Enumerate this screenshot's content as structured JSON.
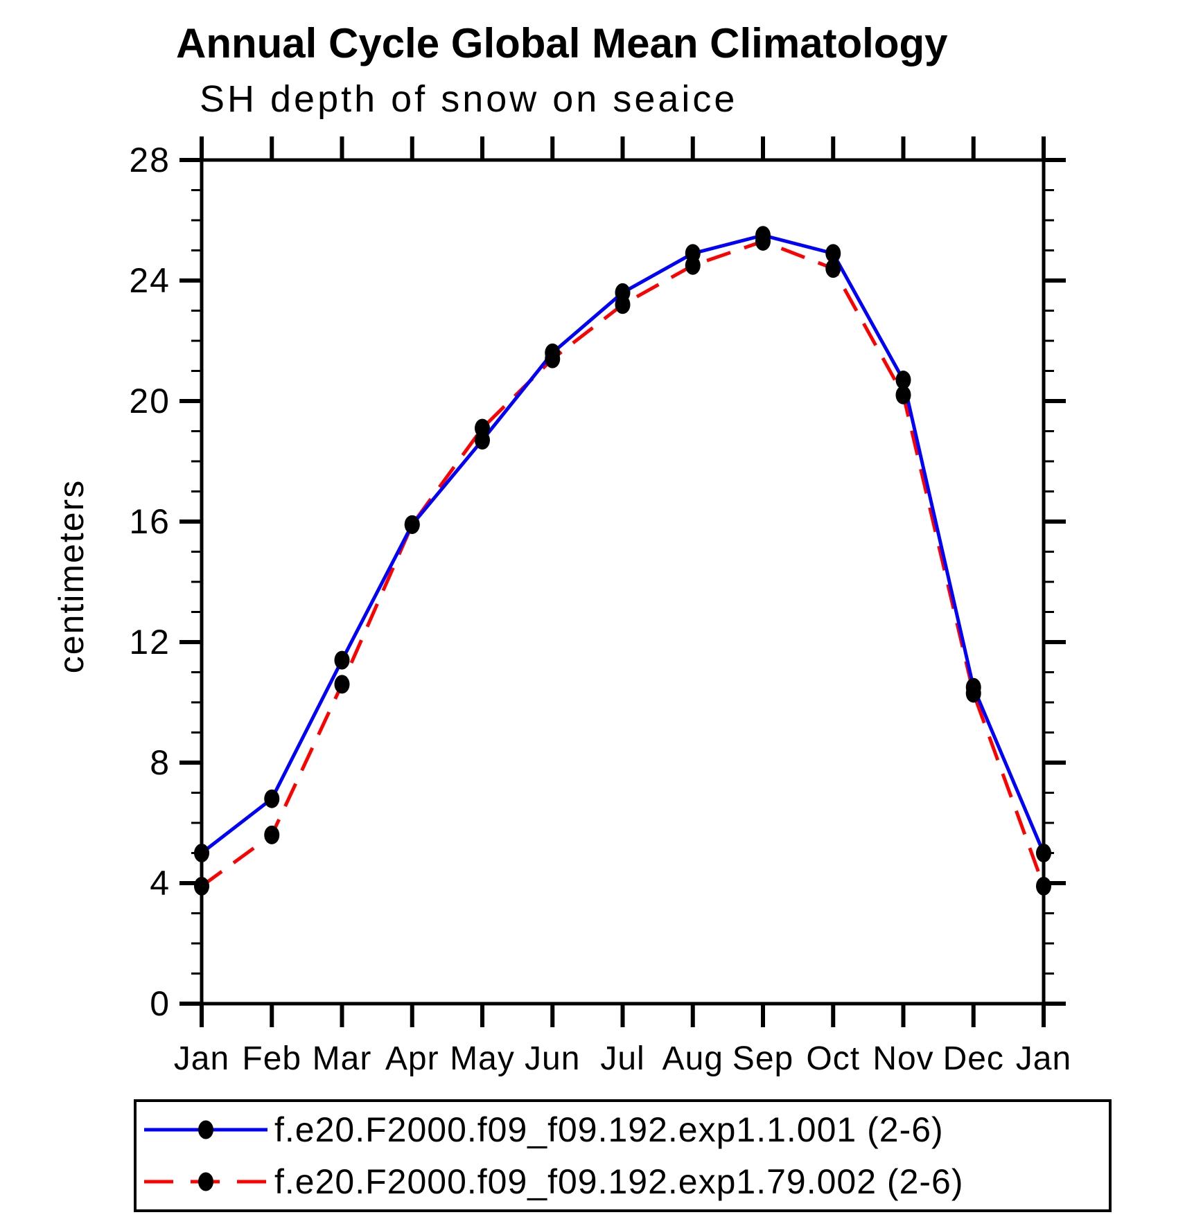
{
  "title": "Annual Cycle Global Mean Climatology",
  "subtitle": "SH depth of snow on seaice",
  "chart_data": {
    "type": "line",
    "title": "Annual Cycle Global Mean Climatology",
    "subtitle": "SH depth of snow on seaice",
    "xlabel": "",
    "ylabel": "centimeters",
    "categories": [
      "Jan",
      "Feb",
      "Mar",
      "Apr",
      "May",
      "Jun",
      "Jul",
      "Aug",
      "Sep",
      "Oct",
      "Nov",
      "Dec",
      "Jan"
    ],
    "series": [
      {
        "name": "f.e20.F2000.f09_f09.192.exp1.1.001 (2-6)",
        "color": "#0000ff",
        "line_style": "solid",
        "marker": "filled-black-dot",
        "values": [
          5.0,
          6.8,
          11.4,
          15.9,
          18.7,
          21.6,
          23.6,
          24.9,
          25.5,
          24.9,
          20.7,
          10.5,
          5.0
        ]
      },
      {
        "name": "f.e20.F2000.f09_f09.192.exp1.79.002 (2-6)",
        "color": "#ff0000",
        "line_style": "dashed",
        "marker": "filled-black-dot",
        "values": [
          3.9,
          5.6,
          10.6,
          15.9,
          19.1,
          21.4,
          23.2,
          24.5,
          25.3,
          24.4,
          20.2,
          10.3,
          3.9
        ]
      }
    ],
    "ylim": [
      0,
      28
    ],
    "yticks_major": [
      0,
      4,
      8,
      12,
      16,
      20,
      24,
      28
    ],
    "ytick_minor_step": 1,
    "grid": false,
    "legend_position": "bottom",
    "marker_color": "#000000",
    "axis_color": "#000000"
  }
}
